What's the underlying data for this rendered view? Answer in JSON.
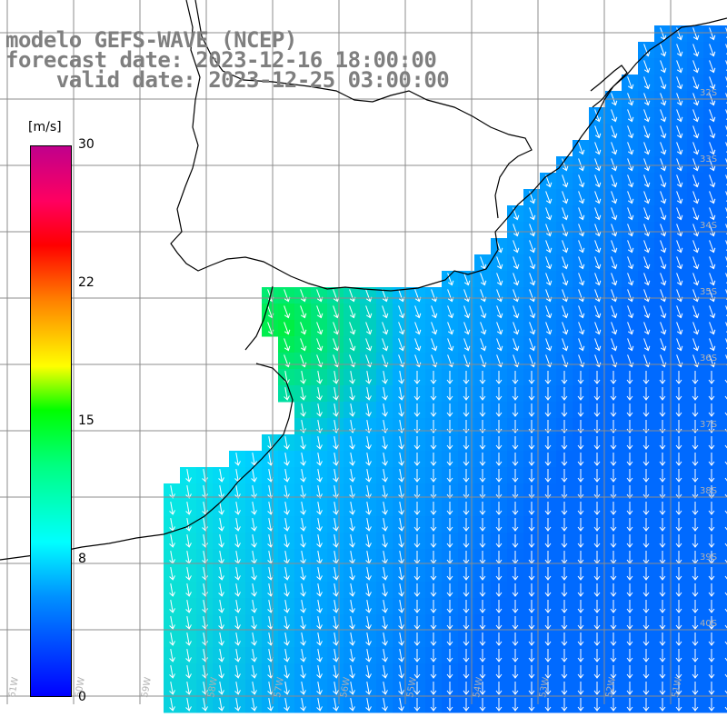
{
  "title": {
    "line1": "modelo GEFS-WAVE (NCEP)",
    "line2": "forecast date: 2023-12-16 18:00:00",
    "line3": "    valid date: 2023-12-25 03:00:00"
  },
  "colorbar": {
    "unit": "[m/s]",
    "ticks": [
      "30",
      "22",
      "15",
      "8",
      "0"
    ],
    "tick_values": [
      30,
      22,
      15,
      8,
      0
    ],
    "colors": [
      "#0000ff",
      "#0090ff",
      "#00ffff",
      "#00ff80",
      "#00ff00",
      "#ffff00",
      "#ff8000",
      "#ff0000",
      "#ff0060",
      "#c0008c"
    ]
  },
  "map": {
    "land_color": "#ffffff",
    "grid_color": "#808080",
    "lat_labels": [
      "32S",
      "33S",
      "34S",
      "35S",
      "36S",
      "37S",
      "38S",
      "39S",
      "40S"
    ],
    "lon_labels": [
      "61W",
      "60W",
      "59W",
      "58W",
      "57W",
      "56W",
      "55W",
      "54W",
      "53W",
      "52W",
      "51W"
    ],
    "wind_direction": "arrows pointing toward south-west (northeasterly wind)"
  }
}
